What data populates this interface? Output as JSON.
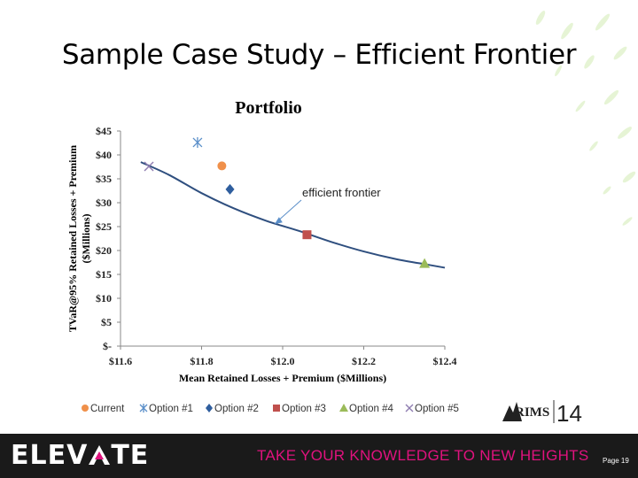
{
  "slide": {
    "title": "Sample Case Study – Efficient Frontier",
    "page_label": "Page 19"
  },
  "footer": {
    "brand_prefix": "ELEV",
    "brand_suffix": "TE",
    "tagline": "TAKE YOUR KNOWLEDGE TO NEW HEIGHTS",
    "rims_text": "RIMS",
    "rims_year": "14",
    "brand_color": "#ffffff",
    "accent_color": "#e0127e",
    "background_color": "#1a1a1a"
  },
  "chart_data": {
    "type": "scatter",
    "title": "Portfolio",
    "xlabel": "Mean Retained Losses + Premium ($Millions)",
    "ylabel": "TVaR@95% Retained Losses + Premium ($Millions)",
    "xlim": [
      11.6,
      12.4
    ],
    "ylim": [
      0,
      45
    ],
    "x_ticks": [
      {
        "value": 11.6,
        "label": "$11.6"
      },
      {
        "value": 11.8,
        "label": "$11.8"
      },
      {
        "value": 12.0,
        "label": "$12.0"
      },
      {
        "value": 12.2,
        "label": "$12.2"
      },
      {
        "value": 12.4,
        "label": "$12.4"
      }
    ],
    "y_ticks": [
      {
        "value": 0,
        "label": "$-"
      },
      {
        "value": 5,
        "label": "$5"
      },
      {
        "value": 10,
        "label": "$10"
      },
      {
        "value": 15,
        "label": "$15"
      },
      {
        "value": 20,
        "label": "$20"
      },
      {
        "value": 25,
        "label": "$25"
      },
      {
        "value": 30,
        "label": "$30"
      },
      {
        "value": 35,
        "label": "$35"
      },
      {
        "value": 40,
        "label": "$40"
      },
      {
        "value": 45,
        "label": "$45"
      }
    ],
    "grid": false,
    "legend_position": "bottom",
    "series": [
      {
        "name": "Current",
        "marker": "circle",
        "color": "#f0904a",
        "x": 11.85,
        "y": 37.7
      },
      {
        "name": "Option #1",
        "marker": "star",
        "color": "#5b8fc9",
        "x": 11.79,
        "y": 42.6
      },
      {
        "name": "Option #2",
        "marker": "diamond",
        "color": "#2f5e9e",
        "x": 11.87,
        "y": 32.8
      },
      {
        "name": "Option #3",
        "marker": "square",
        "color": "#c0504d",
        "x": 12.06,
        "y": 23.3
      },
      {
        "name": "Option #4",
        "marker": "triangle",
        "color": "#9bbb59",
        "x": 12.35,
        "y": 17.3
      },
      {
        "name": "Option #5",
        "marker": "x",
        "color": "#8e7cb0",
        "x": 11.67,
        "y": 37.6
      }
    ],
    "frontier": {
      "color": "#2f4f7f",
      "points": [
        [
          11.65,
          38.5
        ],
        [
          11.72,
          35.8
        ],
        [
          11.8,
          32.0
        ],
        [
          11.88,
          28.8
        ],
        [
          11.96,
          26.2
        ],
        [
          12.04,
          24.1
        ],
        [
          12.12,
          21.8
        ],
        [
          12.2,
          19.8
        ],
        [
          12.28,
          18.2
        ],
        [
          12.36,
          17.0
        ],
        [
          12.4,
          16.4
        ]
      ]
    },
    "annotation": {
      "text": "efficient frontier",
      "arrow_to": [
        11.98,
        25.5
      ]
    }
  }
}
